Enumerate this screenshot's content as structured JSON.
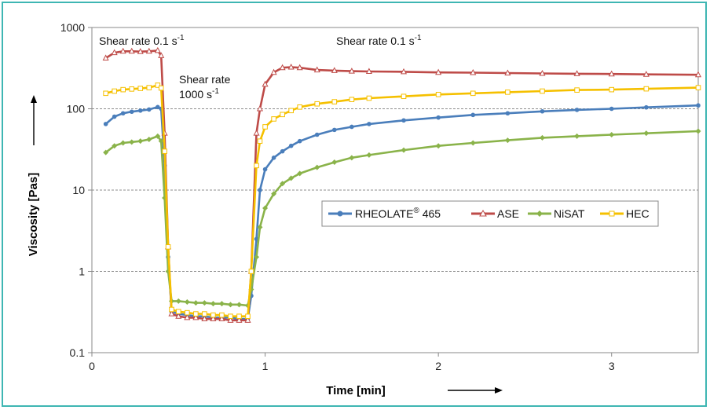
{
  "chart_data": {
    "type": "line",
    "xlabel": "Time [min]",
    "ylabel": "Viscosity [Pas]",
    "xlim": [
      0,
      3.5
    ],
    "ylim": [
      0.1,
      1000
    ],
    "y_scale": "log",
    "x_ticks": [
      "0",
      "1",
      "2",
      "3"
    ],
    "y_ticks": [
      "0.1",
      "1",
      "10",
      "100",
      "1000"
    ],
    "grid": "horizontal dashed",
    "legend_position": "center-right",
    "annotations": [
      {
        "text": "Shear rate 0.1 s",
        "sup": "-1",
        "id": "shear-rate-low-left"
      },
      {
        "text": "Shear rate",
        "id": "shear-rate-high-line1"
      },
      {
        "text": "1000 s",
        "sup": "-1",
        "id": "shear-rate-high-line2"
      },
      {
        "text": "Shear rate 0.1 s",
        "sup": "-1",
        "id": "shear-rate-low-right"
      }
    ],
    "series": [
      {
        "name": "RHEOLATE® 465",
        "legend_main": "RHEOLATE",
        "legend_sup": "®",
        "legend_tail": " 465",
        "color": "#4a7ebb",
        "marker": "circle",
        "x": [
          0.08,
          0.13,
          0.18,
          0.23,
          0.28,
          0.33,
          0.38,
          0.4,
          0.42,
          0.44,
          0.46,
          0.5,
          0.55,
          0.6,
          0.65,
          0.7,
          0.75,
          0.8,
          0.85,
          0.9,
          0.92,
          0.95,
          0.97,
          1.0,
          1.05,
          1.1,
          1.15,
          1.2,
          1.3,
          1.4,
          1.5,
          1.6,
          1.8,
          2.0,
          2.2,
          2.4,
          2.6,
          2.8,
          3.0,
          3.2,
          3.5
        ],
        "y": [
          65,
          80,
          88,
          92,
          95,
          98,
          105,
          100,
          20,
          1.5,
          0.32,
          0.3,
          0.29,
          0.28,
          0.28,
          0.27,
          0.27,
          0.27,
          0.26,
          0.26,
          0.5,
          2.5,
          10,
          18,
          25,
          30,
          35,
          40,
          48,
          55,
          60,
          65,
          72,
          78,
          84,
          88,
          93,
          97,
          100,
          104,
          110
        ]
      },
      {
        "name": "ASE",
        "color": "#be4b48",
        "marker": "triangle",
        "x": [
          0.08,
          0.13,
          0.18,
          0.23,
          0.28,
          0.33,
          0.38,
          0.4,
          0.42,
          0.44,
          0.46,
          0.5,
          0.55,
          0.6,
          0.65,
          0.7,
          0.75,
          0.8,
          0.85,
          0.9,
          0.92,
          0.95,
          0.97,
          1.0,
          1.05,
          1.1,
          1.15,
          1.2,
          1.3,
          1.4,
          1.5,
          1.6,
          1.8,
          2.0,
          2.2,
          2.4,
          2.6,
          2.8,
          3.0,
          3.2,
          3.5
        ],
        "y": [
          420,
          490,
          510,
          510,
          505,
          510,
          520,
          450,
          50,
          2,
          0.3,
          0.28,
          0.27,
          0.27,
          0.26,
          0.26,
          0.26,
          0.25,
          0.25,
          0.25,
          1,
          50,
          100,
          200,
          280,
          320,
          325,
          320,
          300,
          295,
          290,
          288,
          285,
          280,
          278,
          275,
          272,
          270,
          268,
          265,
          262
        ]
      },
      {
        "name": "NiSAT",
        "color": "#8ab34a",
        "marker": "diamond",
        "x": [
          0.08,
          0.13,
          0.18,
          0.23,
          0.28,
          0.33,
          0.38,
          0.4,
          0.42,
          0.44,
          0.46,
          0.5,
          0.55,
          0.6,
          0.65,
          0.7,
          0.75,
          0.8,
          0.85,
          0.9,
          0.92,
          0.95,
          0.97,
          1.0,
          1.05,
          1.1,
          1.15,
          1.2,
          1.3,
          1.4,
          1.5,
          1.6,
          1.8,
          2.0,
          2.2,
          2.4,
          2.6,
          2.8,
          3.0,
          3.2,
          3.5
        ],
        "y": [
          29,
          35,
          38,
          39,
          40,
          42,
          46,
          40,
          8,
          1,
          0.43,
          0.43,
          0.42,
          0.41,
          0.41,
          0.4,
          0.4,
          0.39,
          0.39,
          0.38,
          0.6,
          1.5,
          3.5,
          6,
          9,
          12,
          14,
          16,
          19,
          22,
          25,
          27,
          31,
          35,
          38,
          41,
          44,
          46,
          48,
          50,
          53
        ]
      },
      {
        "name": "HEC",
        "color": "#f5c000",
        "marker": "square",
        "x": [
          0.08,
          0.13,
          0.18,
          0.23,
          0.28,
          0.33,
          0.38,
          0.4,
          0.42,
          0.44,
          0.46,
          0.5,
          0.55,
          0.6,
          0.65,
          0.7,
          0.75,
          0.8,
          0.85,
          0.9,
          0.92,
          0.95,
          0.97,
          1.0,
          1.05,
          1.1,
          1.15,
          1.2,
          1.3,
          1.4,
          1.5,
          1.6,
          1.8,
          2.0,
          2.2,
          2.4,
          2.6,
          2.8,
          3.0,
          3.2,
          3.5
        ],
        "y": [
          155,
          165,
          172,
          175,
          178,
          182,
          195,
          180,
          30,
          2,
          0.34,
          0.32,
          0.31,
          0.3,
          0.3,
          0.29,
          0.29,
          0.28,
          0.28,
          0.28,
          1,
          20,
          40,
          60,
          75,
          85,
          95,
          105,
          115,
          122,
          130,
          135,
          142,
          150,
          155,
          160,
          165,
          170,
          172,
          176,
          182
        ]
      }
    ]
  }
}
